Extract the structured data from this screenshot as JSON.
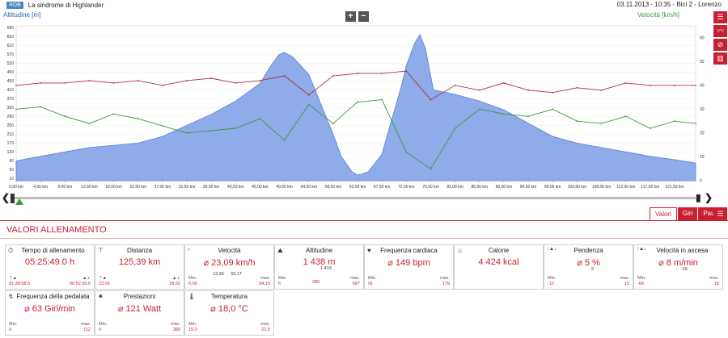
{
  "header": {
    "badge": "RDB",
    "title": "La sindrome di Highlander",
    "info": "03.11.2013  -  10:35  -  Bici 2  -  Lorenzo"
  },
  "chart": {
    "left_axis_label": "Altitudine [m]",
    "right_axis_label": "Velocità [km/h]",
    "zoom_in": "+",
    "zoom_out": "−"
  },
  "chart_data": {
    "type": "area",
    "xlabel": "",
    "x_ticks": [
      "0,00 km",
      "4,50 km",
      "9,00 km",
      "13,50 km",
      "18,00 km",
      "22,50 km",
      "27,00 km",
      "31,50 km",
      "36,00 km",
      "40,50 km",
      "45,00 km",
      "49,50 km",
      "54,00 km",
      "58,50 km",
      "63,00 km",
      "67,50 km",
      "72,00 km",
      "76,50 km",
      "81,00 km",
      "85,50 km",
      "90,00 km",
      "94,50 km",
      "99,00 km",
      "103,50 km",
      "108,00 km",
      "112,50 km",
      "117,00 km",
      "121,50 km"
    ],
    "y_left_ticks": [
      "690",
      "650",
      "610",
      "570",
      "530",
      "490",
      "450",
      "410",
      "370",
      "330",
      "290",
      "250",
      "210",
      "170",
      "130",
      "90",
      "50",
      "10"
    ],
    "y_right_ticks": [
      "60",
      "50",
      "40",
      "30",
      "20",
      "10",
      "0"
    ],
    "xlim": [
      0,
      125.39
    ],
    "ylim_left": [
      0,
      700
    ],
    "ylim_right": [
      0,
      65
    ],
    "series": [
      {
        "name": "Altitudine [m]",
        "axis": "left",
        "color": "#7b9ee6",
        "x": [
          0,
          4.5,
          9,
          13.5,
          18,
          22.5,
          27,
          31.5,
          36,
          40.5,
          45,
          47,
          48.5,
          49.5,
          51,
          54,
          56,
          58.5,
          60,
          62,
          63,
          65,
          67.5,
          69,
          71,
          72,
          73.5,
          74.5,
          75.5,
          77,
          81,
          85.5,
          90,
          94.5,
          99,
          103.5,
          108,
          112.5,
          117,
          121.5,
          125.39
        ],
        "y": [
          90,
          110,
          130,
          150,
          160,
          170,
          200,
          250,
          300,
          360,
          440,
          520,
          570,
          580,
          560,
          480,
          360,
          210,
          110,
          40,
          25,
          40,
          120,
          250,
          420,
          520,
          620,
          660,
          600,
          410,
          390,
          360,
          320,
          260,
          200,
          170,
          150,
          130,
          110,
          95,
          80
        ]
      },
      {
        "name": "Frequenza cardiaca",
        "axis": "right",
        "color": "#b42a3a",
        "x": [
          0,
          4.5,
          9,
          13.5,
          18,
          22.5,
          27,
          31.5,
          36,
          40.5,
          45,
          49.5,
          54,
          58.5,
          63,
          67.5,
          72,
          76.5,
          81,
          85.5,
          90,
          94.5,
          99,
          103.5,
          108,
          112.5,
          117,
          121.5,
          125.39
        ],
        "y": [
          40,
          41,
          41,
          42,
          41,
          42,
          40,
          42,
          43,
          41,
          42,
          44,
          36,
          44,
          45,
          45,
          46,
          34,
          40,
          38,
          41,
          38,
          37,
          39,
          38,
          41,
          40,
          40,
          40
        ]
      },
      {
        "name": "Velocità [km/h]",
        "axis": "right",
        "color": "#3a9a3a",
        "x": [
          0,
          4.5,
          9,
          13.5,
          18,
          22.5,
          27,
          31.5,
          36,
          40.5,
          45,
          49.5,
          54,
          58.5,
          63,
          67.5,
          72,
          76.5,
          81,
          85.5,
          90,
          94.5,
          99,
          103.5,
          108,
          112.5,
          117,
          121.5,
          125.39
        ],
        "y": [
          30,
          31,
          27,
          24,
          28,
          26,
          23,
          20,
          21,
          22,
          26,
          17,
          32,
          24,
          33,
          34,
          12,
          5,
          22,
          30,
          28,
          27,
          30,
          25,
          24,
          27,
          22,
          25,
          24
        ]
      }
    ]
  },
  "slider": {
    "left_arrow": "❮",
    "right_arrow": "❯"
  },
  "tabs": [
    {
      "label": "Valori",
      "selected": true
    },
    {
      "label": "Giri",
      "selected": false
    },
    {
      "label": "Pause",
      "selected": false
    }
  ],
  "section_title": "VALORI ALLENAMENTO",
  "tiles": [
    {
      "name": "Tempo di allenamento",
      "icon": "clock-icon",
      "value": "05:25:49.0 h",
      "min_label": "",
      "max_label": "",
      "min": "01:38:58.5",
      "max": "00:52:30.0"
    },
    {
      "name": "Distanza",
      "icon": "road-sign-icon",
      "value": "125,39 km",
      "min_label": "",
      "max_label": "",
      "min": "23,02",
      "max": "29,02"
    },
    {
      "name": "Velocità",
      "icon": "speedometer-icon",
      "value": "⌀ 23,09 km/h",
      "min_label": "Min.",
      "max_label": "max.",
      "min": "0,00",
      "max": "54,15",
      "sub1": "13,96",
      "sub2": "33,17"
    },
    {
      "name": "Altitudine",
      "icon": "mountain-icon",
      "value": "1 438 m",
      "sub_text": "1 419",
      "min_label": "Min.",
      "max_label": "max.",
      "min": "6",
      "max": "687",
      "mid": "280"
    },
    {
      "name": "Frequenza cardiaca",
      "icon": "heart-icon",
      "value": "⌀ 149 bpm",
      "min_label": "Min.",
      "max_label": "max.",
      "min": "91",
      "max": "179"
    },
    {
      "name": "Calorie",
      "icon": "flame-icon",
      "value": "4 424 kcal",
      "min_label": "",
      "max_label": "",
      "min": "",
      "max": ""
    },
    {
      "name": "Pendenza",
      "icon": "slope-icon",
      "value": "⌀ 5 %",
      "sub_text": "-3",
      "min_label": "Min.",
      "max_label": "max.",
      "min": "-12",
      "max": "15"
    },
    {
      "name": "Velocità in ascesa",
      "icon": "climb-speed-icon",
      "value": "⌀ 8 m/min",
      "sub_text": "-16",
      "min_label": "Min.",
      "max_label": "max.",
      "min": "-66",
      "max": "18"
    },
    {
      "name": "Frequenza della pedalata",
      "icon": "pedal-icon",
      "value": "⌀ 63 Giri/min",
      "min_label": "Min.",
      "max_label": "max.",
      "min": "0",
      "max": "112"
    },
    {
      "name": "Prestazioni",
      "icon": "power-icon",
      "value": "⌀ 121 Watt",
      "min_label": "Min.",
      "max_label": "max.",
      "min": "0",
      "max": "389"
    },
    {
      "name": "Temperatura",
      "icon": "thermometer-icon",
      "value": "⌀ 18,0 °C",
      "min_label": "Min.",
      "max_label": "max.",
      "min": "15,0",
      "max": "21,0"
    }
  ],
  "colors": {
    "accent": "#c8202e",
    "altitude": "#7b9ee6",
    "speed": "#3a9a3a",
    "heart": "#b42a3a"
  }
}
